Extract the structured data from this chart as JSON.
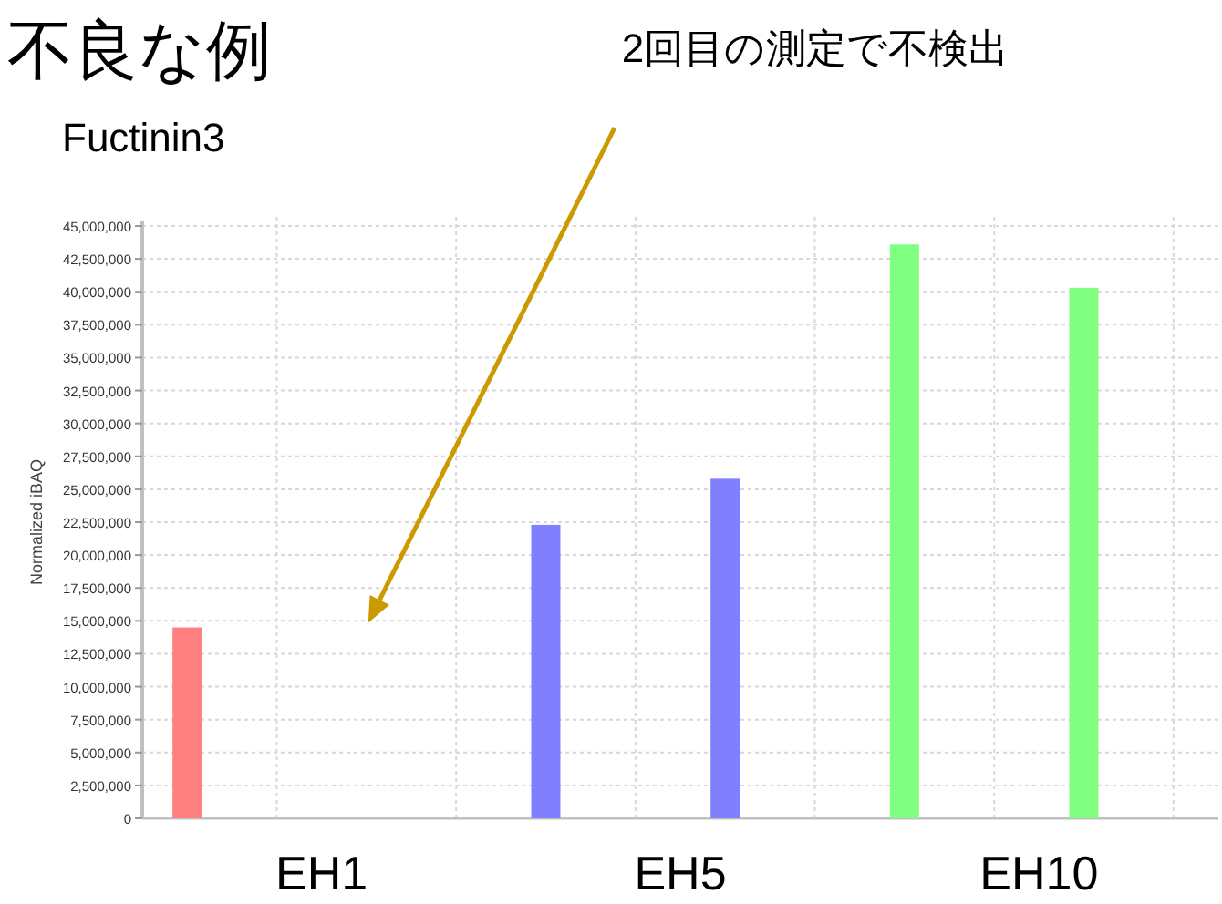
{
  "chart_data": {
    "type": "bar",
    "title": "不良な例",
    "subtitle": "Fuctinin3",
    "ylabel": "Normalized iBAQ",
    "categories": [
      "EH1",
      "EH5",
      "EH10"
    ],
    "series": [
      {
        "colors": [
          "#ff8080",
          "#8080ff",
          "#80ff80"
        ],
        "values": [
          14500000,
          22300000,
          43600000
        ]
      },
      {
        "colors": [
          null,
          "#8080ff",
          "#80ff80"
        ],
        "values": [
          null,
          25800000,
          40300000
        ]
      }
    ],
    "ylim": [
      0,
      45000000
    ],
    "yticks": [
      {
        "value": 0,
        "label": "0"
      },
      {
        "value": 2500000,
        "label": "2,500,000"
      },
      {
        "value": 5000000,
        "label": "5,000,000"
      },
      {
        "value": 7500000,
        "label": "7,500,000"
      },
      {
        "value": 10000000,
        "label": "10,000,000"
      },
      {
        "value": 12500000,
        "label": "12,500,000"
      },
      {
        "value": 15000000,
        "label": "15,000,000"
      },
      {
        "value": 17500000,
        "label": "17,500,000"
      },
      {
        "value": 20000000,
        "label": "20,000,000"
      },
      {
        "value": 22500000,
        "label": "22,500,000"
      },
      {
        "value": 25000000,
        "label": "25,000,000"
      },
      {
        "value": 27500000,
        "label": "27,500,000"
      },
      {
        "value": 30000000,
        "label": "30,000,000"
      },
      {
        "value": 32500000,
        "label": "32,500,000"
      },
      {
        "value": 35000000,
        "label": "35,000,000"
      },
      {
        "value": 37500000,
        "label": "37,500,000"
      },
      {
        "value": 40000000,
        "label": "40,000,000"
      },
      {
        "value": 42500000,
        "label": "42,500,000"
      },
      {
        "value": 45000000,
        "label": "45,000,000"
      }
    ],
    "grid": true,
    "annotations": [
      "2回目の測定で不検出"
    ]
  }
}
